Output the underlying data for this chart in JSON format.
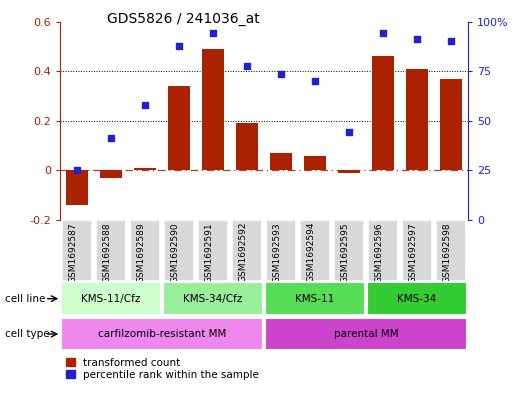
{
  "title": "GDS5826 / 241036_at",
  "samples": [
    "GSM1692587",
    "GSM1692588",
    "GSM1692589",
    "GSM1692590",
    "GSM1692591",
    "GSM1692592",
    "GSM1692593",
    "GSM1692594",
    "GSM1692595",
    "GSM1692596",
    "GSM1692597",
    "GSM1692598"
  ],
  "bar_values": [
    -0.14,
    -0.03,
    0.01,
    0.34,
    0.49,
    0.19,
    0.07,
    0.06,
    -0.01,
    0.46,
    0.41,
    0.37
  ],
  "dot_values_left": [
    0.0,
    0.13,
    0.265,
    0.5,
    0.555,
    0.42,
    0.39,
    0.36,
    0.155,
    0.555,
    0.53,
    0.52
  ],
  "ylim_left": [
    -0.2,
    0.6
  ],
  "ylim_right": [
    0,
    100
  ],
  "yticks_left": [
    -0.2,
    0.0,
    0.2,
    0.4,
    0.6
  ],
  "yticks_right": [
    0,
    25,
    50,
    75,
    100
  ],
  "ytick_labels_left": [
    "-0.2",
    "0",
    "0.2",
    "0.4",
    "0.6"
  ],
  "ytick_labels_right": [
    "0",
    "25",
    "50",
    "75",
    "100%"
  ],
  "bar_color": "#aa2200",
  "dot_color": "#2222cc",
  "hline_color": "#cc3333",
  "cell_line_groups": [
    {
      "label": "KMS-11/Cfz",
      "start": 0,
      "end": 3,
      "color": "#ccffcc"
    },
    {
      "label": "KMS-34/Cfz",
      "start": 3,
      "end": 6,
      "color": "#99ee99"
    },
    {
      "label": "KMS-11",
      "start": 6,
      "end": 9,
      "color": "#55dd55"
    },
    {
      "label": "KMS-34",
      "start": 9,
      "end": 12,
      "color": "#33cc33"
    }
  ],
  "cell_type_groups": [
    {
      "label": "carfilzomib-resistant MM",
      "start": 0,
      "end": 6,
      "color": "#ee88ee"
    },
    {
      "label": "parental MM",
      "start": 6,
      "end": 12,
      "color": "#cc44cc"
    }
  ],
  "legend_bar_label": "transformed count",
  "legend_dot_label": "percentile rank within the sample",
  "sample_bg_color": "#d8d8d8",
  "fig_bg": "#ffffff"
}
